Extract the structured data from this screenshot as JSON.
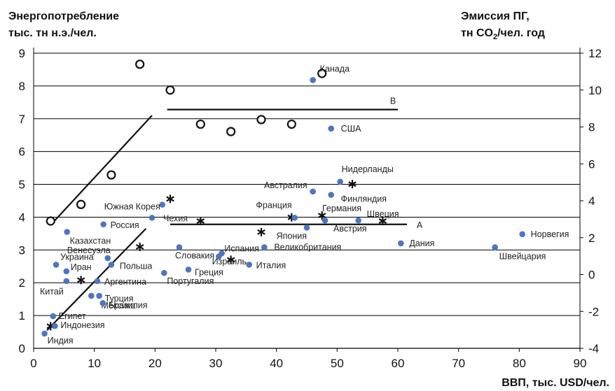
{
  "chart_data": {
    "type": "scatter",
    "title": "",
    "left_header": [
      "Энергопотребление",
      "тыс. тн н.э./чел."
    ],
    "right_header": [
      "Эмиссия ПГ,",
      "тн CO",
      "2",
      "/чел. год"
    ],
    "xlabel": "ВВП, тыс. USD/чел.",
    "xlim": [
      0,
      90
    ],
    "ylim": [
      0,
      9
    ],
    "y2lim": [
      -4,
      12
    ],
    "x_ticks": [
      "0",
      "10",
      "20",
      "30",
      "40",
      "50",
      "60",
      "70",
      "80",
      "90"
    ],
    "y_ticks": [
      "0",
      "1",
      "2",
      "3",
      "4",
      "5",
      "6",
      "7",
      "8",
      "9"
    ],
    "y2_ticks": [
      "-4",
      "-2",
      "0",
      "2",
      "4",
      "6",
      "8",
      "10",
      "12"
    ],
    "grid": true,
    "colors": {
      "energy_dot": "#4f74c0",
      "marker": "#111111",
      "line": "#111111",
      "grid": "#000000"
    },
    "series": [
      {
        "marker": "dot",
        "points": [
          {
            "label": "Индия",
            "x": 1.8,
            "y": 0.45
          },
          {
            "label": "Индонезия",
            "x": 3.5,
            "y": 0.68
          },
          {
            "label": "Египет",
            "x": 3.2,
            "y": 0.98
          },
          {
            "label": "Китай",
            "x": 5.4,
            "y": 2.05
          },
          {
            "label": "Иран",
            "x": 5.4,
            "y": 2.35
          },
          {
            "label": "Украина",
            "x": 3.7,
            "y": 2.55
          },
          {
            "label": "Казахстан",
            "x": 5.5,
            "y": 3.55
          },
          {
            "label": "Россия",
            "x": 11.5,
            "y": 3.78
          },
          {
            "label": "Венесуэла",
            "x": 12.2,
            "y": 2.75
          },
          {
            "label": "Польша",
            "x": 12.8,
            "y": 2.55
          },
          {
            "label": "Аргентина",
            "x": 10.5,
            "y": 2.05
          },
          {
            "label": "Мексика",
            "x": 9.5,
            "y": 1.6
          },
          {
            "label": "Турция",
            "x": 10.8,
            "y": 1.6
          },
          {
            "label": "Бразилия",
            "x": 11.4,
            "y": 1.38
          },
          {
            "label": "Южная Корея",
            "x": 21.2,
            "y": 4.38
          },
          {
            "label": "Чехия",
            "x": 19.5,
            "y": 3.98
          },
          {
            "label": "Словакия",
            "x": 24,
            "y": 3.08
          },
          {
            "label": "Португалия",
            "x": 21.5,
            "y": 2.3
          },
          {
            "label": "Греция",
            "x": 25.5,
            "y": 2.4
          },
          {
            "label": "Израиль",
            "x": 31,
            "y": 2.9
          },
          {
            "label": "Испания",
            "x": 30.5,
            "y": 2.8
          },
          {
            "label": "Италия",
            "x": 35.5,
            "y": 2.55
          },
          {
            "label": "Великобритания",
            "x": 38,
            "y": 3.08
          },
          {
            "label": "Франция",
            "x": 43,
            "y": 3.98
          },
          {
            "label": "Япония",
            "x": 45,
            "y": 3.68
          },
          {
            "label": "Германия",
            "x": 48,
            "y": 3.9
          },
          {
            "label": "Австрия",
            "x": 48,
            "y": 3.9
          },
          {
            "label": "Швеция",
            "x": 53.5,
            "y": 3.9
          },
          {
            "label": "Австралия",
            "x": 46,
            "y": 4.78
          },
          {
            "label": "Финляндия",
            "x": 49,
            "y": 4.68
          },
          {
            "label": "Нидерланды",
            "x": 50.5,
            "y": 5.08
          },
          {
            "label": "Канада",
            "x": 46,
            "y": 8.18
          },
          {
            "label": "США",
            "x": 49,
            "y": 6.7
          },
          {
            "label": "Дания",
            "x": 60.5,
            "y": 3.2
          },
          {
            "label": "Норвегия",
            "x": 80.5,
            "y": 3.48
          },
          {
            "label": "Швейцария",
            "x": 76,
            "y": 3.08
          }
        ]
      },
      {
        "marker": "circle",
        "axis": "right",
        "points": [
          {
            "x": 2.8,
            "y": 2.9
          },
          {
            "x": 7.8,
            "y": 3.8
          },
          {
            "x": 12.8,
            "y": 5.4
          },
          {
            "x": 17.5,
            "y": 11.4
          },
          {
            "x": 22.5,
            "y": 10.0
          },
          {
            "x": 27.5,
            "y": 8.15
          },
          {
            "x": 32.5,
            "y": 7.75
          },
          {
            "x": 37.5,
            "y": 8.4
          },
          {
            "x": 42.5,
            "y": 8.15
          },
          {
            "x": 47.5,
            "y": 10.9
          }
        ]
      },
      {
        "marker": "asterisk",
        "axis": "right",
        "points": [
          {
            "x": 2.8,
            "y": -2.8
          },
          {
            "x": 7.8,
            "y": -0.3
          },
          {
            "x": 17.5,
            "y": 1.5
          },
          {
            "x": 22.5,
            "y": 4.1
          },
          {
            "x": 27.5,
            "y": 2.9
          },
          {
            "x": 32.5,
            "y": 0.8
          },
          {
            "x": 37.5,
            "y": 2.3
          },
          {
            "x": 42.5,
            "y": 3.1
          },
          {
            "x": 47.5,
            "y": 3.2
          },
          {
            "x": 52.5,
            "y": 4.9
          },
          {
            "x": 57.5,
            "y": 2.9
          }
        ]
      }
    ],
    "reference_lines": [
      {
        "label": "",
        "x1": 3.5,
        "y1": 3.9,
        "x2": 19.5,
        "y2": 7.1
      },
      {
        "label": "",
        "x1": 2.2,
        "y1": 0.55,
        "x2": 18.5,
        "y2": 3.65
      },
      {
        "label": "B",
        "x1": 22,
        "y1": 7.28,
        "x2": 60,
        "y2": 7.28
      },
      {
        "label": "A",
        "x1": 22.5,
        "y1": 3.78,
        "x2": 61.5,
        "y2": 3.78
      }
    ]
  }
}
